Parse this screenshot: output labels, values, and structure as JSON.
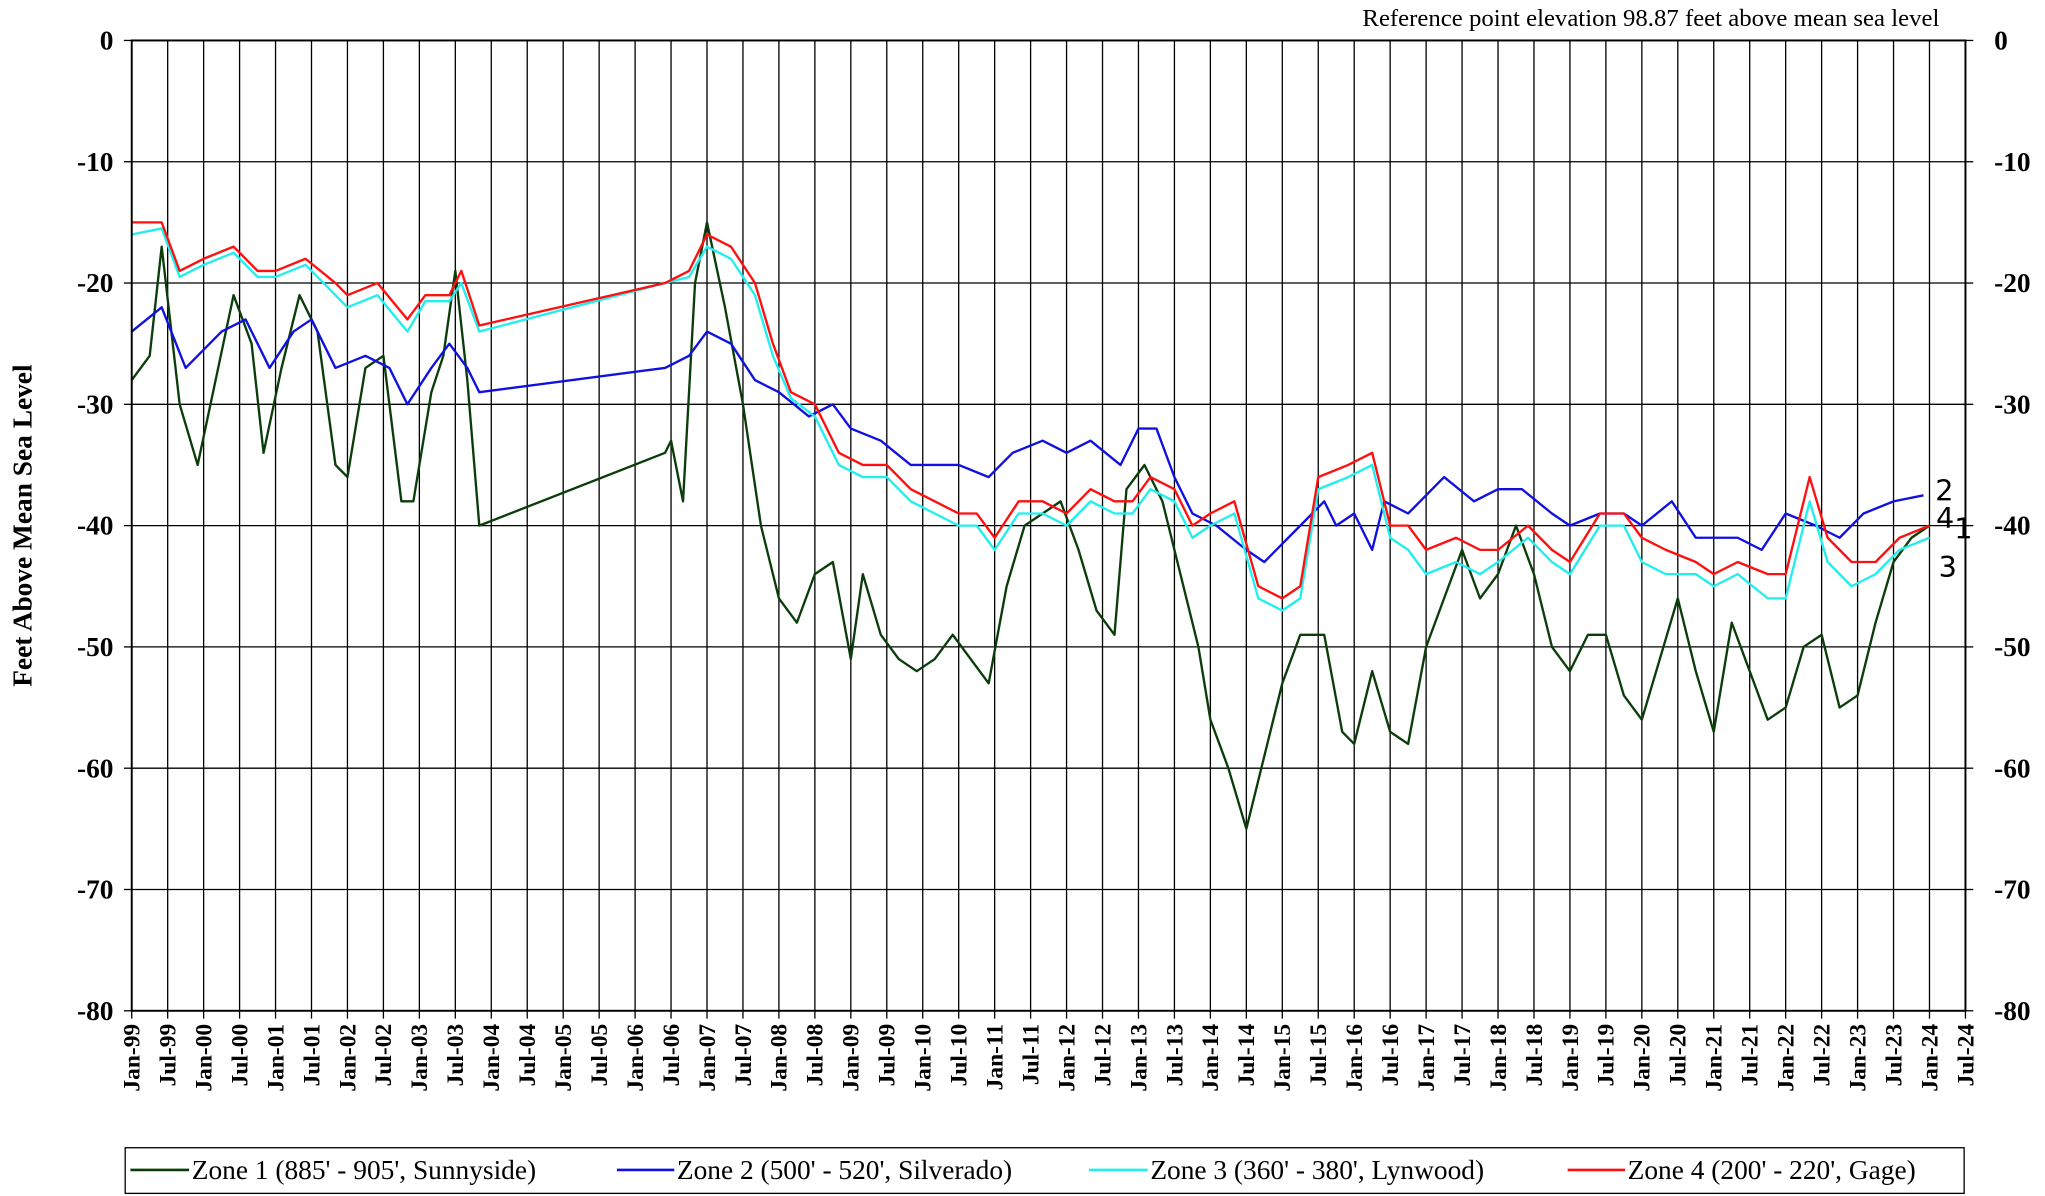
{
  "chart_data": {
    "type": "line",
    "annotation": "Reference point elevation  98.87 feet above mean sea level",
    "y_label": "Feet Above Mean Sea Level",
    "ylim": [
      -80,
      0
    ],
    "yticks": [
      0,
      -10,
      -20,
      -30,
      -40,
      -50,
      -60,
      -70,
      -80
    ],
    "y2lim": [
      -80,
      0
    ],
    "y2ticks": [
      0,
      -10,
      -20,
      -30,
      -40,
      -50,
      -60,
      -70,
      -80
    ],
    "xlim": [
      "1999-01",
      "2024-07"
    ],
    "xticks": [
      {
        "value": "1999-01",
        "label": "Jan-99"
      },
      {
        "value": "1999-07",
        "label": "Jul-99"
      },
      {
        "value": "2000-01",
        "label": "Jan-00"
      },
      {
        "value": "2000-07",
        "label": "Jul-00"
      },
      {
        "value": "2001-01",
        "label": "Jan-01"
      },
      {
        "value": "2001-07",
        "label": "Jul-01"
      },
      {
        "value": "2002-01",
        "label": "Jan-02"
      },
      {
        "value": "2002-07",
        "label": "Jul-02"
      },
      {
        "value": "2003-01",
        "label": "Jan-03"
      },
      {
        "value": "2003-07",
        "label": "Jul-03"
      },
      {
        "value": "2004-01",
        "label": "Jan-04"
      },
      {
        "value": "2004-07",
        "label": "Jul-04"
      },
      {
        "value": "2005-01",
        "label": "Jan-05"
      },
      {
        "value": "2005-07",
        "label": "Jul-05"
      },
      {
        "value": "2006-01",
        "label": "Jan-06"
      },
      {
        "value": "2006-07",
        "label": "Jul-06"
      },
      {
        "value": "2007-01",
        "label": "Jan-07"
      },
      {
        "value": "2007-07",
        "label": "Jul-07"
      },
      {
        "value": "2008-01",
        "label": "Jan-08"
      },
      {
        "value": "2008-07",
        "label": "Jul-08"
      },
      {
        "value": "2009-01",
        "label": "Jan-09"
      },
      {
        "value": "2009-07",
        "label": "Jul-09"
      },
      {
        "value": "2010-01",
        "label": "Jan-10"
      },
      {
        "value": "2010-07",
        "label": "Jul-10"
      },
      {
        "value": "2011-01",
        "label": "Jan-11"
      },
      {
        "value": "2011-07",
        "label": "Jul-11"
      },
      {
        "value": "2012-01",
        "label": "Jan-12"
      },
      {
        "value": "2012-07",
        "label": "Jul-12"
      },
      {
        "value": "2013-01",
        "label": "Jan-13"
      },
      {
        "value": "2013-07",
        "label": "Jul-13"
      },
      {
        "value": "2014-01",
        "label": "Jan-14"
      },
      {
        "value": "2014-07",
        "label": "Jul-14"
      },
      {
        "value": "2015-01",
        "label": "Jan-15"
      },
      {
        "value": "2015-07",
        "label": "Jul-15"
      },
      {
        "value": "2016-01",
        "label": "Jan-16"
      },
      {
        "value": "2016-07",
        "label": "Jul-16"
      },
      {
        "value": "2017-01",
        "label": "Jan-17"
      },
      {
        "value": "2017-07",
        "label": "Jul-17"
      },
      {
        "value": "2018-01",
        "label": "Jan-18"
      },
      {
        "value": "2018-07",
        "label": "Jul-18"
      },
      {
        "value": "2019-01",
        "label": "Jan-19"
      },
      {
        "value": "2019-07",
        "label": "Jul-19"
      },
      {
        "value": "2020-01",
        "label": "Jan-20"
      },
      {
        "value": "2020-07",
        "label": "Jul-20"
      },
      {
        "value": "2021-01",
        "label": "Jan-21"
      },
      {
        "value": "2021-07",
        "label": "Jul-21"
      },
      {
        "value": "2022-01",
        "label": "Jan-22"
      },
      {
        "value": "2022-07",
        "label": "Jul-22"
      },
      {
        "value": "2023-01",
        "label": "Jan-23"
      },
      {
        "value": "2023-07",
        "label": "Jul-23"
      },
      {
        "value": "2024-01",
        "label": "Jan-24"
      },
      {
        "value": "2024-07",
        "label": "Jul-24"
      }
    ],
    "grid": true,
    "legend": "bottom",
    "series": [
      {
        "name": "Zone 1 (885' - 905', Sunnyside)",
        "label": "1",
        "color": "#0b3d0b",
        "x": [
          "1999-01",
          "1999-04",
          "1999-06",
          "1999-09",
          "1999-12",
          "2000-03",
          "2000-06",
          "2000-09",
          "2000-11",
          "2001-02",
          "2001-05",
          "2001-08",
          "2001-11",
          "2002-01",
          "2002-04",
          "2002-07",
          "2002-10",
          "2002-12",
          "2003-03",
          "2003-05",
          "2003-07",
          "2003-09",
          "2003-11",
          "2006-06",
          "2006-07",
          "2006-09",
          "2006-11",
          "2007-01",
          "2007-04",
          "2007-07",
          "2007-10",
          "2008-01",
          "2008-04",
          "2008-07",
          "2008-10",
          "2009-01",
          "2009-03",
          "2009-06",
          "2009-09",
          "2009-12",
          "2010-03",
          "2010-06",
          "2010-09",
          "2010-12",
          "2011-03",
          "2011-06",
          "2011-09",
          "2011-12",
          "2012-03",
          "2012-06",
          "2012-09",
          "2012-11",
          "2013-02",
          "2013-05",
          "2013-08",
          "2013-11",
          "2014-01",
          "2014-04",
          "2014-07",
          "2015-01",
          "2015-04",
          "2015-08",
          "2015-11",
          "2016-01",
          "2016-04",
          "2016-07",
          "2016-10",
          "2017-01",
          "2017-04",
          "2017-07",
          "2017-10",
          "2018-01",
          "2018-04",
          "2018-07",
          "2018-10",
          "2019-01",
          "2019-04",
          "2019-07",
          "2019-10",
          "2020-01",
          "2020-04",
          "2020-07",
          "2020-10",
          "2021-01",
          "2021-04",
          "2021-07",
          "2021-10",
          "2022-01",
          "2022-04",
          "2022-07",
          "2022-10",
          "2023-01",
          "2023-04",
          "2023-07",
          "2023-10",
          "2024-01"
        ],
        "values": [
          -28,
          -26,
          -17,
          -30,
          -35,
          -28,
          -21,
          -25,
          -34,
          -27,
          -21,
          -24,
          -35,
          -36,
          -27,
          -26,
          -38,
          -38,
          -29,
          -26,
          -19,
          -28,
          -40,
          -34,
          -33,
          -38,
          -20,
          -15,
          -22,
          -30,
          -40,
          -46,
          -48,
          -44,
          -43,
          -51,
          -44,
          -49,
          -51,
          -52,
          -51,
          -49,
          -51,
          -53,
          -45,
          -40,
          -39,
          -38,
          -42,
          -47,
          -49,
          -37,
          -35,
          -38,
          -44,
          -50,
          -56,
          -60,
          -65,
          -53,
          -49,
          -49,
          -57,
          -58,
          -52,
          -57,
          -58,
          -50,
          -46,
          -42,
          -46,
          -44,
          -40,
          -44,
          -50,
          -52,
          -49,
          -49,
          -54,
          -56,
          -51,
          -46,
          -52,
          -57,
          -48,
          -52,
          -56,
          -55,
          -50,
          -49,
          -55,
          -54,
          -48,
          -43,
          -41,
          -40
        ]
      },
      {
        "name": "Zone 2 (500' - 520', Silverado)",
        "label": "2",
        "color": "#1010e0",
        "x": [
          "1999-01",
          "1999-06",
          "1999-10",
          "2000-04",
          "2000-08",
          "2000-12",
          "2001-04",
          "2001-07",
          "2001-11",
          "2002-04",
          "2002-08",
          "2002-11",
          "2003-03",
          "2003-06",
          "2003-09",
          "2003-11",
          "2006-06",
          "2006-10",
          "2007-01",
          "2007-05",
          "2007-09",
          "2008-01",
          "2008-06",
          "2008-10",
          "2009-01",
          "2009-06",
          "2009-11",
          "2010-01",
          "2010-07",
          "2010-12",
          "2011-04",
          "2011-09",
          "2012-01",
          "2012-05",
          "2012-10",
          "2013-01",
          "2013-04",
          "2013-07",
          "2013-10",
          "2014-02",
          "2014-07",
          "2014-10",
          "2015-04",
          "2015-08",
          "2015-10",
          "2016-01",
          "2016-04",
          "2016-06",
          "2016-10",
          "2017-04",
          "2017-09",
          "2018-01",
          "2018-05",
          "2018-10",
          "2019-01",
          "2019-06",
          "2019-10",
          "2020-01",
          "2020-06",
          "2020-10",
          "2021-01",
          "2021-05",
          "2021-09",
          "2022-01",
          "2022-06",
          "2022-10",
          "2023-02",
          "2023-07",
          "2023-12"
        ],
        "values": [
          -24,
          -22,
          -27,
          -24,
          -23,
          -27,
          -24,
          -23,
          -27,
          -26,
          -27,
          -30,
          -27,
          -25,
          -27,
          -29,
          -27,
          -26,
          -24,
          -25,
          -28,
          -29,
          -31,
          -30,
          -32,
          -33,
          -35,
          -35,
          -35,
          -36,
          -34,
          -33,
          -34,
          -33,
          -35,
          -32,
          -32,
          -36,
          -39,
          -40,
          -42,
          -43,
          -40,
          -38,
          -40,
          -39,
          -42,
          -38,
          -39,
          -36,
          -38,
          -37,
          -37,
          -39,
          -40,
          -39,
          -39,
          -40,
          -38,
          -41,
          -41,
          -41,
          -42,
          -39,
          -40,
          -41,
          -39,
          -38,
          -37.5
        ]
      },
      {
        "name": "Zone 3 (360' - 380', Lynwood)",
        "label": "3",
        "color": "#22eeee",
        "x": [
          "1999-01",
          "1999-06",
          "1999-09",
          "2000-01",
          "2000-06",
          "2000-10",
          "2001-01",
          "2001-06",
          "2001-11",
          "2002-01",
          "2002-06",
          "2002-11",
          "2003-02",
          "2003-06",
          "2003-08",
          "2003-11",
          "2006-06",
          "2006-10",
          "2007-01",
          "2007-05",
          "2007-09",
          "2007-12",
          "2008-03",
          "2008-07",
          "2008-11",
          "2009-03",
          "2009-07",
          "2009-11",
          "2010-03",
          "2010-07",
          "2010-10",
          "2011-01",
          "2011-05",
          "2011-09",
          "2012-01",
          "2012-05",
          "2012-09",
          "2012-12",
          "2013-03",
          "2013-07",
          "2013-10",
          "2014-01",
          "2014-05",
          "2014-09",
          "2015-01",
          "2015-04",
          "2015-07",
          "2015-12",
          "2016-04",
          "2016-07",
          "2016-10",
          "2017-01",
          "2017-06",
          "2017-10",
          "2018-01",
          "2018-06",
          "2018-10",
          "2019-01",
          "2019-06",
          "2019-10",
          "2020-01",
          "2020-05",
          "2020-10",
          "2021-01",
          "2021-05",
          "2021-10",
          "2022-01",
          "2022-05",
          "2022-08",
          "2022-12",
          "2023-04",
          "2023-08",
          "2024-01"
        ],
        "values": [
          -16,
          -15.5,
          -19.5,
          -18.5,
          -17.5,
          -19.5,
          -19.5,
          -18.5,
          -21,
          -22,
          -21,
          -24,
          -21.5,
          -21.5,
          -20,
          -24,
          -20,
          -19.5,
          -17,
          -18,
          -21,
          -26,
          -29.5,
          -31,
          -35,
          -36,
          -36,
          -38,
          -39,
          -40,
          -40,
          -42,
          -39,
          -39,
          -40,
          -38,
          -39,
          -39,
          -37,
          -38,
          -41,
          -40,
          -39,
          -46,
          -47,
          -46,
          -37,
          -36,
          -35,
          -41,
          -42,
          -44,
          -43,
          -44,
          -43,
          -41,
          -43,
          -44,
          -40,
          -40,
          -43,
          -44,
          -44,
          -45,
          -44,
          -46,
          -46,
          -38,
          -43,
          -45,
          -44,
          -42,
          -41
        ]
      },
      {
        "name": "Zone 4 (200' - 220', Gage)",
        "label": "4",
        "color": "#ff1010",
        "x": [
          "1999-01",
          "1999-06",
          "1999-09",
          "2000-01",
          "2000-06",
          "2000-10",
          "2001-01",
          "2001-06",
          "2001-11",
          "2002-01",
          "2002-06",
          "2002-11",
          "2003-02",
          "2003-06",
          "2003-08",
          "2003-11",
          "2006-06",
          "2006-10",
          "2007-01",
          "2007-05",
          "2007-09",
          "2007-12",
          "2008-03",
          "2008-07",
          "2008-11",
          "2009-03",
          "2009-07",
          "2009-11",
          "2010-03",
          "2010-07",
          "2010-10",
          "2011-01",
          "2011-05",
          "2011-09",
          "2012-01",
          "2012-05",
          "2012-09",
          "2012-12",
          "2013-03",
          "2013-07",
          "2013-10",
          "2014-01",
          "2014-05",
          "2014-09",
          "2015-01",
          "2015-04",
          "2015-07",
          "2015-12",
          "2016-04",
          "2016-07",
          "2016-10",
          "2017-01",
          "2017-06",
          "2017-10",
          "2018-01",
          "2018-06",
          "2018-10",
          "2019-01",
          "2019-06",
          "2019-10",
          "2020-01",
          "2020-05",
          "2020-10",
          "2021-01",
          "2021-05",
          "2021-10",
          "2022-01",
          "2022-05",
          "2022-08",
          "2022-12",
          "2023-04",
          "2023-08",
          "2024-01"
        ],
        "values": [
          -15,
          -15,
          -19,
          -18,
          -17,
          -19,
          -19,
          -18,
          -20,
          -21,
          -20,
          -23,
          -21,
          -21,
          -19,
          -23.5,
          -20,
          -19,
          -16,
          -17,
          -20,
          -25,
          -29,
          -30,
          -34,
          -35,
          -35,
          -37,
          -38,
          -39,
          -39,
          -41,
          -38,
          -38,
          -39,
          -37,
          -38,
          -38,
          -36,
          -37,
          -40,
          -39,
          -38,
          -45,
          -46,
          -45,
          -36,
          -35,
          -34,
          -40,
          -40,
          -42,
          -41,
          -42,
          -42,
          -40,
          -42,
          -43,
          -39,
          -39,
          -41,
          -42,
          -43,
          -44,
          -43,
          -44,
          -44,
          -36,
          -41,
          -43,
          -43,
          -41,
          -40
        ]
      }
    ]
  }
}
